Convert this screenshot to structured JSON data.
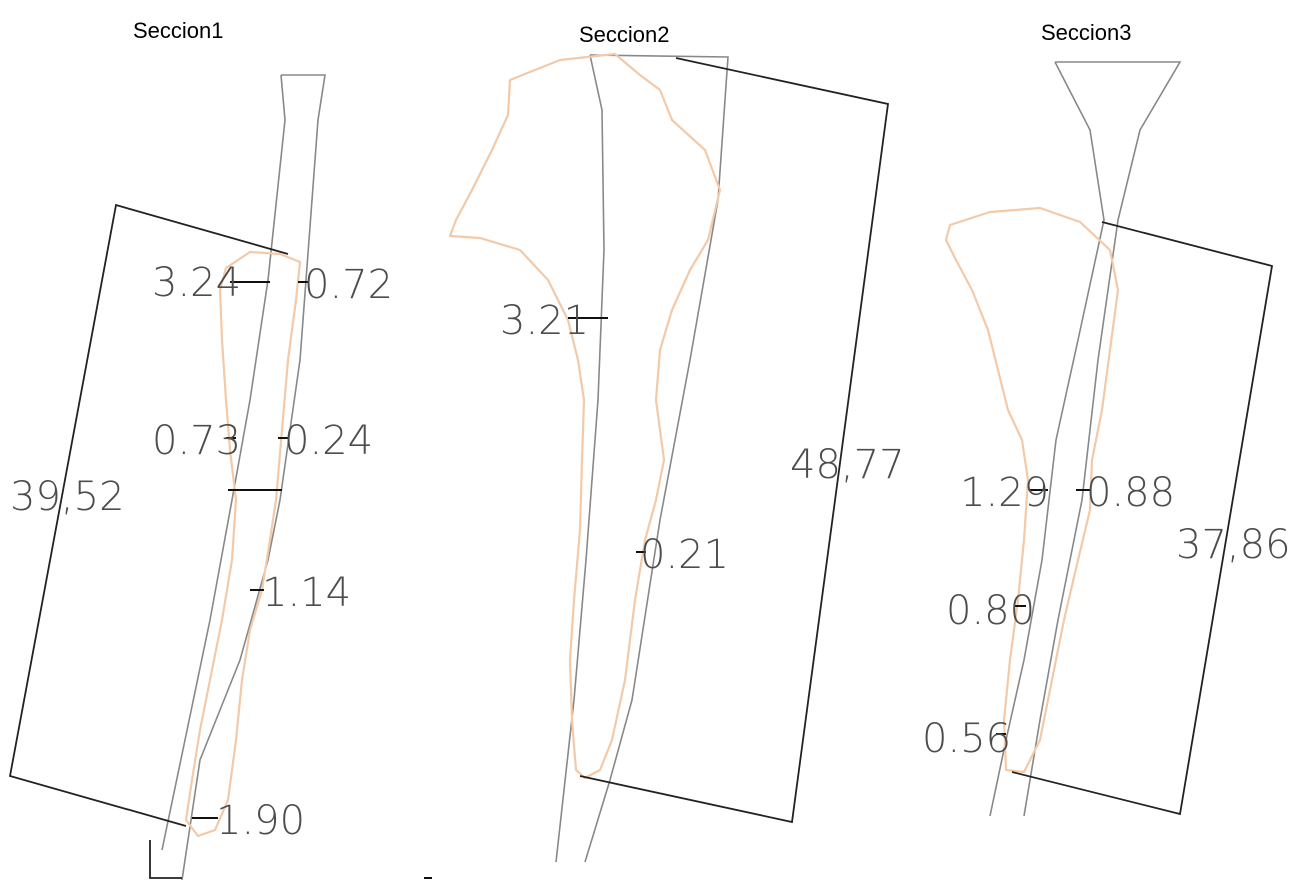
{
  "sections": [
    {
      "title": "Seccion1",
      "total_length": "39,52",
      "measurements": [
        "3.24",
        "0.72",
        "0.73",
        "0.24",
        "1.14",
        "1.90"
      ]
    },
    {
      "title": "Seccion2",
      "total_length": "48,77",
      "measurements": [
        "3.21",
        "0.21"
      ]
    },
    {
      "title": "Seccion3",
      "total_length": "37,86",
      "measurements": [
        "1.29",
        "0.88",
        "0.80",
        "0.56"
      ]
    }
  ],
  "colors": {
    "outline": "#888888",
    "overlay": "#f3c9a8",
    "dimension": "#222222",
    "text": "#4d4d4d"
  }
}
